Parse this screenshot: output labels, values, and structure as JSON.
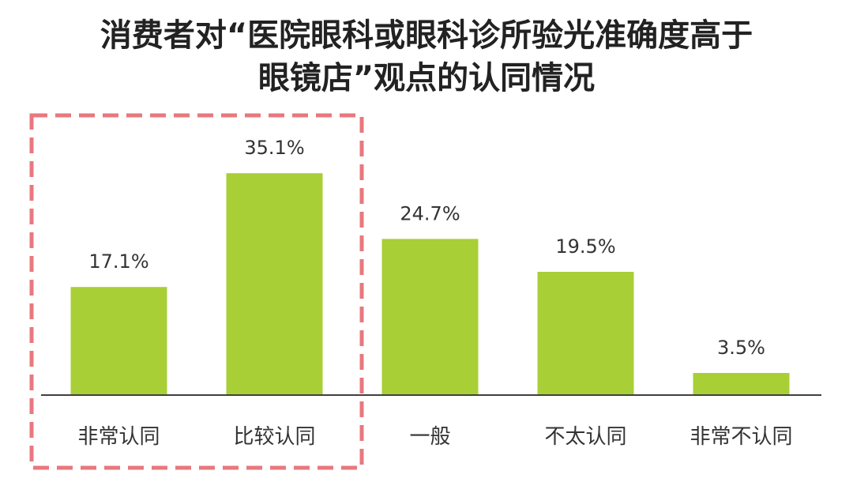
{
  "chart_data": {
    "type": "bar",
    "title_lines": [
      "消费者对“医院眼科或眼科诊所验光准确度高于",
      "眼镜店”观点的认同情况"
    ],
    "categories": [
      "非常认同",
      "比较认同",
      "一般",
      "不太认同",
      "非常不认同"
    ],
    "values": [
      17.1,
      35.1,
      24.7,
      19.5,
      3.5
    ],
    "value_labels": [
      "17.1%",
      "35.1%",
      "24.7%",
      "19.5%",
      "3.5%"
    ],
    "unit": "%",
    "xlabel": "",
    "ylabel": "",
    "ylim": [
      0,
      40
    ],
    "grid": false,
    "legend": "none",
    "highlighted_categories": [
      "非常认同",
      "比较认同"
    ]
  },
  "colors": {
    "bar": "#a8cf36",
    "axis": "#404040",
    "highlight_border": "#e8787e",
    "title": "#222222",
    "label": "#333333"
  }
}
